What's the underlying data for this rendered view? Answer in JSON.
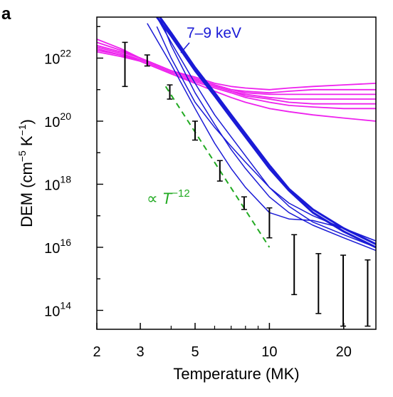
{
  "panel_label": "a",
  "chart_data": {
    "type": "line",
    "xlabel": "Temperature (MK)",
    "ylabel_parts": {
      "main": "DEM (cm",
      "exp1": "−5",
      "mid": " K",
      "exp2": "−1",
      "end": ")"
    },
    "x_scale": "log",
    "y_scale": "log",
    "xlim": [
      2,
      27
    ],
    "ylim_log10": [
      13.4,
      23.3
    ],
    "x_ticks": [
      2,
      3,
      5,
      10,
      20
    ],
    "x_minor_ticks": [
      4,
      6,
      7,
      8,
      9
    ],
    "y_ticks": [
      {
        "base": "10",
        "exp": "14",
        "log10": 14
      },
      {
        "base": "10",
        "exp": "16",
        "log10": 16
      },
      {
        "base": "10",
        "exp": "18",
        "log10": 18
      },
      {
        "base": "10",
        "exp": "20",
        "log10": 20
      },
      {
        "base": "10",
        "exp": "22",
        "log10": 22
      }
    ],
    "grid": false,
    "annotations": {
      "band_label": "7–9 keV",
      "power_law": {
        "prefix": "∝ ",
        "var": "T",
        "exp": "−12"
      }
    },
    "colors": {
      "magenta": "#ee22ee",
      "blue": "#1a1ad6",
      "green": "#22aa22",
      "black": "#000000"
    },
    "series": [
      {
        "group": "magenta",
        "x": [
          2,
          2.5,
          3,
          4,
          5,
          6,
          7,
          8,
          10,
          12,
          15,
          20,
          27
        ],
        "log10_y": [
          22.6,
          22.3,
          22.0,
          21.6,
          21.4,
          21.2,
          21.1,
          21.05,
          21.0,
          21.05,
          21.1,
          21.15,
          21.2
        ]
      },
      {
        "group": "magenta",
        "x": [
          2,
          2.5,
          3,
          4,
          5,
          6,
          7,
          8,
          10,
          12,
          15,
          20,
          27
        ],
        "log10_y": [
          22.5,
          22.25,
          22.0,
          21.6,
          21.35,
          21.15,
          21.0,
          20.95,
          20.9,
          20.95,
          21.0,
          21.0,
          21.0
        ]
      },
      {
        "group": "magenta",
        "x": [
          2,
          2.5,
          3,
          4,
          5,
          6,
          7,
          8,
          10,
          12,
          15,
          20,
          27
        ],
        "log10_y": [
          22.4,
          22.2,
          22.0,
          21.6,
          21.35,
          21.15,
          21.0,
          20.9,
          20.85,
          20.85,
          20.85,
          20.85,
          20.85
        ]
      },
      {
        "group": "magenta",
        "x": [
          2,
          2.5,
          3,
          4,
          5,
          6,
          7,
          8,
          10,
          12,
          15,
          20,
          27
        ],
        "log10_y": [
          22.35,
          22.15,
          21.95,
          21.55,
          21.3,
          21.1,
          20.95,
          20.85,
          20.75,
          20.7,
          20.7,
          20.7,
          20.7
        ]
      },
      {
        "group": "magenta",
        "x": [
          2,
          2.5,
          3,
          4,
          5,
          6,
          7,
          8,
          10,
          12,
          15,
          20,
          27
        ],
        "log10_y": [
          22.3,
          22.1,
          21.95,
          21.55,
          21.3,
          21.1,
          20.95,
          20.8,
          20.7,
          20.6,
          20.55,
          20.55,
          20.55
        ]
      },
      {
        "group": "magenta",
        "x": [
          2,
          2.5,
          3,
          4,
          5,
          6,
          7,
          8,
          10,
          12,
          15,
          20,
          27
        ],
        "log10_y": [
          22.25,
          22.1,
          21.9,
          21.5,
          21.25,
          21.05,
          20.9,
          20.75,
          20.6,
          20.5,
          20.45,
          20.4,
          20.4
        ]
      },
      {
        "group": "magenta",
        "x": [
          2,
          2.5,
          3,
          4,
          5,
          6,
          7,
          8,
          10,
          12,
          15,
          20,
          27
        ],
        "log10_y": [
          22.2,
          22.05,
          21.9,
          21.5,
          21.2,
          20.95,
          20.75,
          20.6,
          20.4,
          20.3,
          20.2,
          20.1,
          20.0
        ]
      },
      {
        "group": "blue",
        "x": [
          3.5,
          4,
          5,
          6,
          7,
          8,
          10,
          12,
          15,
          20,
          27
        ],
        "log10_y": [
          23.3,
          22.7,
          21.6,
          20.8,
          20.1,
          19.5,
          18.5,
          17.8,
          17.1,
          16.5,
          16.0
        ],
        "width": 3
      },
      {
        "group": "blue",
        "x": [
          3.6,
          4,
          5,
          6,
          7,
          8,
          10,
          12,
          15,
          20,
          27
        ],
        "log10_y": [
          23.3,
          22.8,
          21.7,
          20.9,
          20.2,
          19.6,
          18.6,
          17.85,
          17.2,
          16.6,
          16.1
        ],
        "width": 3
      },
      {
        "group": "blue",
        "x": [
          3.5,
          4,
          5,
          6,
          7,
          8,
          10,
          12,
          15,
          20,
          27
        ],
        "log10_y": [
          23.0,
          22.0,
          20.6,
          19.8,
          19.2,
          18.7,
          17.9,
          17.4,
          17.0,
          16.6,
          16.2
        ],
        "width": 1.5
      },
      {
        "group": "blue",
        "x": [
          3.2,
          4,
          5,
          6,
          7,
          8,
          10,
          12,
          15,
          20,
          27
        ],
        "log10_y": [
          23.1,
          21.8,
          20.4,
          19.3,
          18.5,
          17.9,
          17.1,
          16.9,
          16.85,
          16.6,
          16.2
        ],
        "width": 1.5
      },
      {
        "group": "blue",
        "x": [
          3.6,
          4,
          5,
          6,
          7,
          8,
          10,
          12,
          15,
          20,
          27
        ],
        "log10_y": [
          23.3,
          22.4,
          20.9,
          19.9,
          19.1,
          18.5,
          17.6,
          17.1,
          16.7,
          16.3,
          15.9
        ],
        "width": 1.5
      },
      {
        "group": "blue",
        "x": [
          3.5,
          4,
          5,
          6,
          7,
          8,
          10,
          12,
          15,
          20,
          27
        ],
        "log10_y": [
          23.3,
          22.5,
          21.2,
          20.2,
          19.5,
          18.9,
          17.9,
          17.3,
          16.8,
          16.4,
          16.0
        ],
        "width": 1.5
      }
    ],
    "fit_line": {
      "x": [
        3.8,
        10
      ],
      "log10_y": [
        21.1,
        16.0
      ]
    },
    "error_bars": [
      {
        "x": 2.6,
        "log10_lo": 21.1,
        "log10_hi": 22.5
      },
      {
        "x": 3.2,
        "log10_lo": 21.75,
        "log10_hi": 22.1
      },
      {
        "x": 3.95,
        "log10_lo": 20.7,
        "log10_hi": 21.15
      },
      {
        "x": 5.0,
        "log10_lo": 19.4,
        "log10_hi": 20.0
      },
      {
        "x": 6.3,
        "log10_lo": 18.1,
        "log10_hi": 18.75
      },
      {
        "x": 7.9,
        "log10_lo": 17.2,
        "log10_hi": 17.6
      },
      {
        "x": 10.0,
        "log10_lo": 16.3,
        "log10_hi": 17.25
      },
      {
        "x": 12.6,
        "log10_lo": 14.5,
        "log10_hi": 16.4
      },
      {
        "x": 15.8,
        "log10_lo": 13.9,
        "log10_hi": 15.8
      },
      {
        "x": 19.9,
        "log10_lo": 13.5,
        "log10_hi": 15.75
      },
      {
        "x": 25.0,
        "log10_lo": 13.5,
        "log10_hi": 15.6
      }
    ]
  }
}
